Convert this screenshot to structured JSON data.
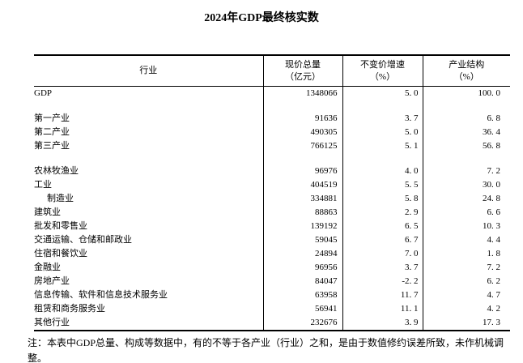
{
  "title": "2024年GDP最终核实数",
  "table": {
    "columns": [
      {
        "label": "行业",
        "unit": ""
      },
      {
        "label": "现价总量",
        "unit": "（亿元）"
      },
      {
        "label": "不变价增速",
        "unit": "（%）"
      },
      {
        "label": "产业结构",
        "unit": "（%）"
      }
    ],
    "groups": [
      {
        "rows": [
          {
            "label": "GDP",
            "indent": false,
            "values": [
              "1348066",
              "5.0",
              "100.0"
            ]
          }
        ]
      },
      {
        "rows": [
          {
            "label": "第一产业",
            "indent": false,
            "values": [
              "91636",
              "3.7",
              "6.8"
            ]
          },
          {
            "label": "第二产业",
            "indent": false,
            "values": [
              "490305",
              "5.0",
              "36.4"
            ]
          },
          {
            "label": "第三产业",
            "indent": false,
            "values": [
              "766125",
              "5.1",
              "56.8"
            ]
          }
        ]
      },
      {
        "rows": [
          {
            "label": "农林牧渔业",
            "indent": false,
            "values": [
              "96976",
              "4.0",
              "7.2"
            ]
          },
          {
            "label": "工业",
            "indent": false,
            "values": [
              "404519",
              "5.5",
              "30.0"
            ]
          },
          {
            "label": "制造业",
            "indent": true,
            "values": [
              "334881",
              "5.8",
              "24.8"
            ]
          },
          {
            "label": "建筑业",
            "indent": false,
            "values": [
              "88863",
              "2.9",
              "6.6"
            ]
          },
          {
            "label": "批发和零售业",
            "indent": false,
            "values": [
              "139192",
              "6.5",
              "10.3"
            ]
          },
          {
            "label": "交通运输、仓储和邮政业",
            "indent": false,
            "values": [
              "59045",
              "6.7",
              "4.4"
            ]
          },
          {
            "label": "住宿和餐饮业",
            "indent": false,
            "values": [
              "24894",
              "7.0",
              "1.8"
            ]
          },
          {
            "label": "金融业",
            "indent": false,
            "values": [
              "96956",
              "3.7",
              "7.2"
            ]
          },
          {
            "label": "房地产业",
            "indent": false,
            "values": [
              "84047",
              "-2.2",
              "6.2"
            ]
          },
          {
            "label": "信息传输、软件和信息技术服务业",
            "indent": false,
            "values": [
              "63958",
              "11.7",
              "4.7"
            ]
          },
          {
            "label": "租赁和商务服务业",
            "indent": false,
            "values": [
              "56941",
              "11.1",
              "4.2"
            ]
          },
          {
            "label": "其他行业",
            "indent": false,
            "values": [
              "232676",
              "3.9",
              "17.3"
            ]
          }
        ]
      }
    ]
  },
  "note": "注：本表中GDP总量、构成等数据中，有的不等于各产业（行业）之和，是由于数值修约误差所致，未作机械调整。"
}
